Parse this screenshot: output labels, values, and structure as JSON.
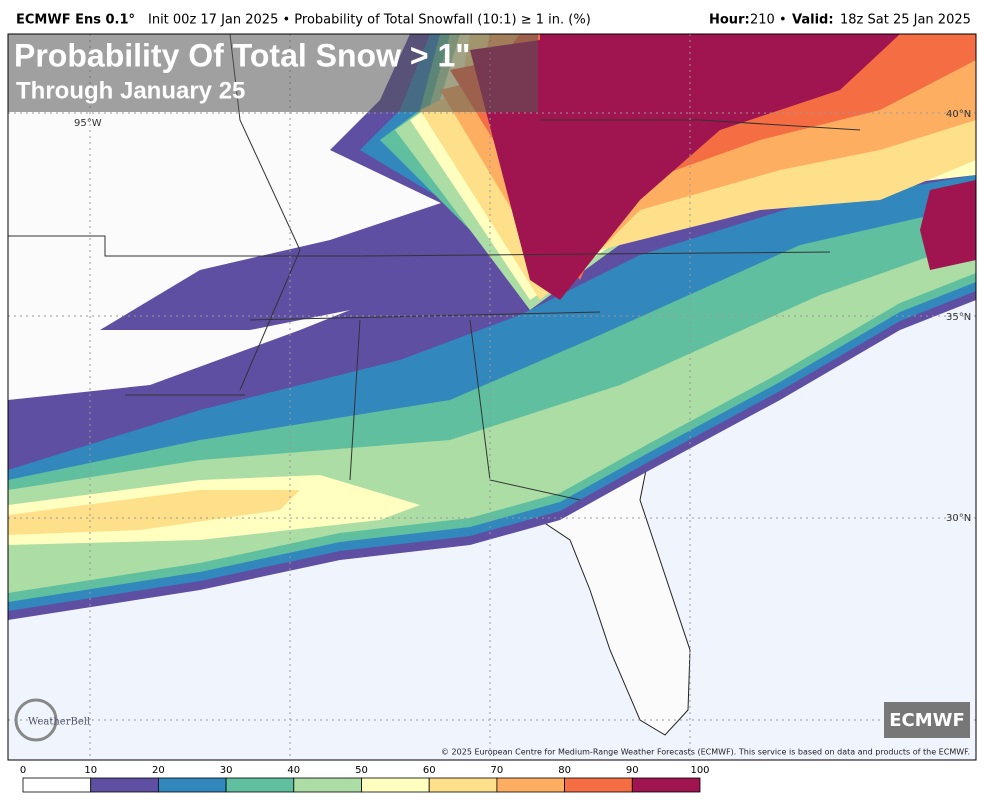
{
  "header": {
    "model": "ECMWF Ens 0.1°",
    "init": "Init 00z 17 Jan 2025 • Probability of Total Snowfall (10:1) ≥ 1 in. (%)",
    "hour_label": "Hour:",
    "hour": "210 •",
    "valid_label": "Valid:",
    "valid": "18z Sat 25 Jan 2025"
  },
  "overlay": {
    "title": "Probability Of Total Snow > 1\"",
    "subtitle": "Through January 25"
  },
  "map": {
    "lat_labels": [
      "40°N",
      "35°N",
      "30°N"
    ],
    "lon_labels": [
      "95°W"
    ],
    "badge": "ECMWF",
    "logo": "WeatherBell",
    "copyright": "© 2025 European Centre for Medium-Range Weather Forecasts (ECMWF). This service is based on data and products of the ECMWF."
  },
  "colorbar": {
    "labels": [
      0,
      10,
      20,
      30,
      40,
      50,
      60,
      70,
      80,
      90,
      100
    ],
    "colors": [
      "#ffffff",
      "#5e4fa2",
      "#3288bd",
      "#5fbf9f",
      "#abdda4",
      "#ffffbf",
      "#fee08b",
      "#fdae61",
      "#f46d43",
      "#a0154f"
    ]
  }
}
